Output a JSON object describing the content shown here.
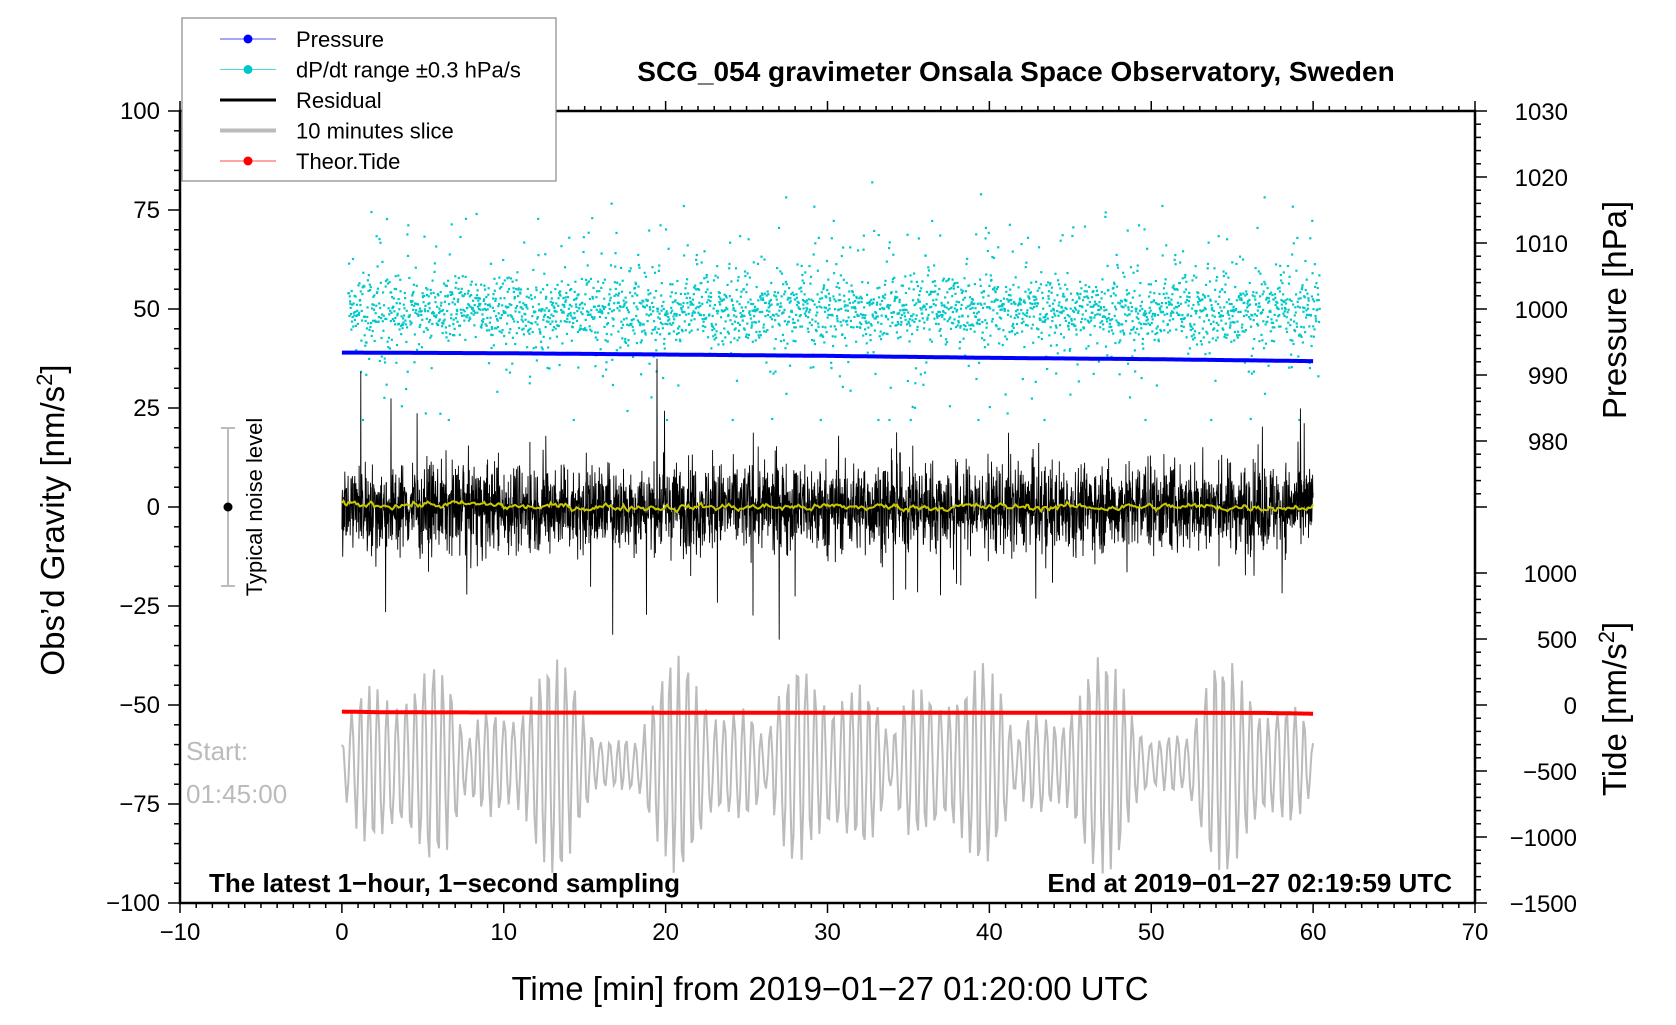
{
  "chart_data": {
    "type": "line",
    "title": "SCG_054 gravimeter Onsala Space Observatory, Sweden",
    "xlabel": "Time [min] from 2019−01−27 01:20:00 UTC",
    "ylabel": "Obs’d Gravity [nm/s²]",
    "y2label_pressure": "Pressure [hPa]",
    "y2label_tide": "Tide [nm/s²]",
    "xlim": [
      -10,
      70
    ],
    "ylim": [
      -100,
      100
    ],
    "pressure_lim": [
      980,
      1030
    ],
    "tide_lim": [
      -1500,
      1000
    ],
    "x_ticks": [
      "−10",
      "0",
      "10",
      "20",
      "30",
      "40",
      "50",
      "60",
      "70"
    ],
    "y_ticks": [
      "100",
      "75",
      "50",
      "25",
      "0",
      "−25",
      "−50",
      "−75",
      "−100"
    ],
    "pressure_ticks": [
      "1030",
      "1020",
      "1010",
      "1000",
      "990",
      "980"
    ],
    "tide_ticks": [
      "1000",
      "500",
      "0",
      "−500",
      "−1000",
      "−1500"
    ],
    "legend": [
      {
        "label": "Pressure",
        "color": "#0000ff",
        "marker": true
      },
      {
        "label": "dP/dt range ±0.3 hPa/s",
        "color": "#00c8c8",
        "marker": true
      },
      {
        "label": "Residual",
        "color": "#000000",
        "marker": false
      },
      {
        "label": "10 minutes slice",
        "color": "#bbbbbb",
        "marker": false
      },
      {
        "label": "Theor.Tide",
        "color": "#ff0000",
        "marker": true
      }
    ],
    "legend_placement": "top-left",
    "series": [
      {
        "name": "Pressure",
        "unit": "hPa",
        "x": [
          0,
          10,
          20,
          30,
          40,
          50,
          60
        ],
        "values": [
          993.4,
          993.3,
          993.1,
          992.9,
          992.6,
          992.4,
          992.1
        ]
      },
      {
        "name": "Theor.Tide",
        "unit": "nm/s2",
        "x": [
          0,
          2.5,
          10,
          20,
          30,
          40,
          50,
          57,
          60
        ],
        "values": [
          -50,
          -55,
          -57,
          -58,
          -59,
          -59,
          -59,
          -60,
          -66
        ]
      },
      {
        "name": "Residual",
        "unit": "nm/s2",
        "center": 0,
        "typical_amplitude": 12,
        "max_abs": 38
      },
      {
        "name": "Residual smoothed",
        "unit": "nm/s2",
        "center": 0,
        "typical_amplitude": 1
      },
      {
        "name": "dP/dt range",
        "unit": "nm/s2 (plotted)",
        "center": 50,
        "typical_spread": 8,
        "max": 90,
        "min": 22
      },
      {
        "name": "10 minutes slice",
        "unit": "nm/s2 (plotted)",
        "center": -65,
        "typical_amplitude": 18,
        "min": -100,
        "max": -30
      }
    ],
    "annotations": {
      "noise_label": "Typical noise level",
      "noise_range": [
        -20,
        20
      ],
      "start_label": "Start:",
      "start_time": "01:45:00",
      "bottom_left": "The latest 1−hour, 1−second sampling",
      "bottom_right": "End at 2019−01−27 02:19:59 UTC"
    }
  }
}
